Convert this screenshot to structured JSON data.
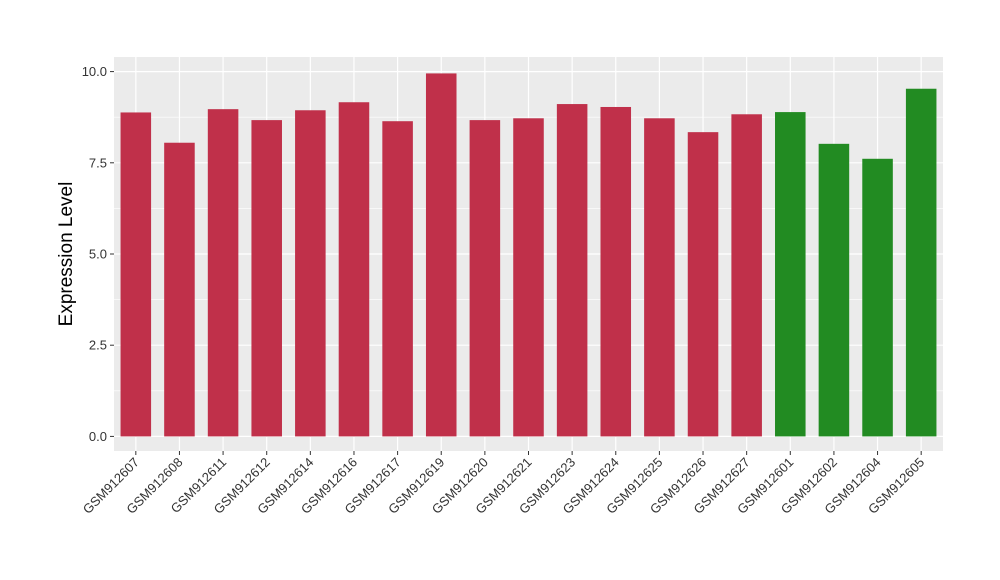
{
  "chart_data": {
    "type": "bar",
    "title": "",
    "xlabel": "",
    "ylabel": "Expression Level",
    "ylim": [
      -0.4,
      10.4
    ],
    "yticks": [
      "0.0",
      "2.5",
      "5.0",
      "7.5",
      "10.0"
    ],
    "grid": true,
    "categories": [
      "GSM912607",
      "GSM912608",
      "GSM912611",
      "GSM912612",
      "GSM912614",
      "GSM912616",
      "GSM912617",
      "GSM912619",
      "GSM912620",
      "GSM912621",
      "GSM912623",
      "GSM912624",
      "GSM912625",
      "GSM912626",
      "GSM912627",
      "GSM912601",
      "GSM912602",
      "GSM912604",
      "GSM912605"
    ],
    "values": [
      8.88,
      8.05,
      8.97,
      8.67,
      8.94,
      9.16,
      8.64,
      9.95,
      8.67,
      8.72,
      9.11,
      9.03,
      8.72,
      8.34,
      8.83,
      8.89,
      8.02,
      7.61,
      9.53
    ],
    "colors": [
      "#c0304a",
      "#c0304a",
      "#c0304a",
      "#c0304a",
      "#c0304a",
      "#c0304a",
      "#c0304a",
      "#c0304a",
      "#c0304a",
      "#c0304a",
      "#c0304a",
      "#c0304a",
      "#c0304a",
      "#c0304a",
      "#c0304a",
      "#228b22",
      "#228b22",
      "#228b22",
      "#228b22"
    ],
    "background_color": "#ebebeb",
    "grid_color": "#ffffff"
  }
}
